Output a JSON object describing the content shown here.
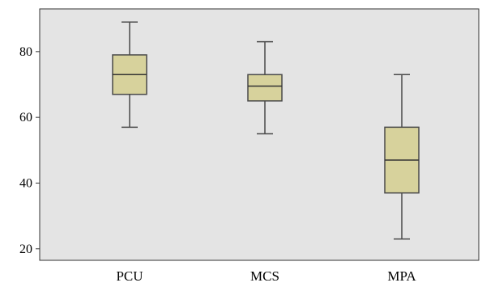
{
  "chart_data": {
    "type": "boxplot",
    "title": "",
    "xlabel": "",
    "ylabel": "",
    "categories": [
      "PCU",
      "MCS",
      "MPA"
    ],
    "boxes": [
      {
        "category": "PCU",
        "min": 57,
        "q1": 67,
        "median": 73,
        "q3": 79,
        "max": 89
      },
      {
        "category": "MCS",
        "min": 55,
        "q1": 65,
        "median": 69.5,
        "q3": 73,
        "max": 83
      },
      {
        "category": "MPA",
        "min": 23,
        "q1": 37,
        "median": 47,
        "q3": 57,
        "max": 73
      }
    ],
    "ylim": [
      16.5,
      93
    ],
    "yticks": [
      20,
      40,
      60,
      80
    ],
    "grid": false,
    "colors": {
      "plot_background": "#e4e4e4",
      "box_fill": "#d7d29c",
      "line": "#4a4a4a"
    }
  }
}
